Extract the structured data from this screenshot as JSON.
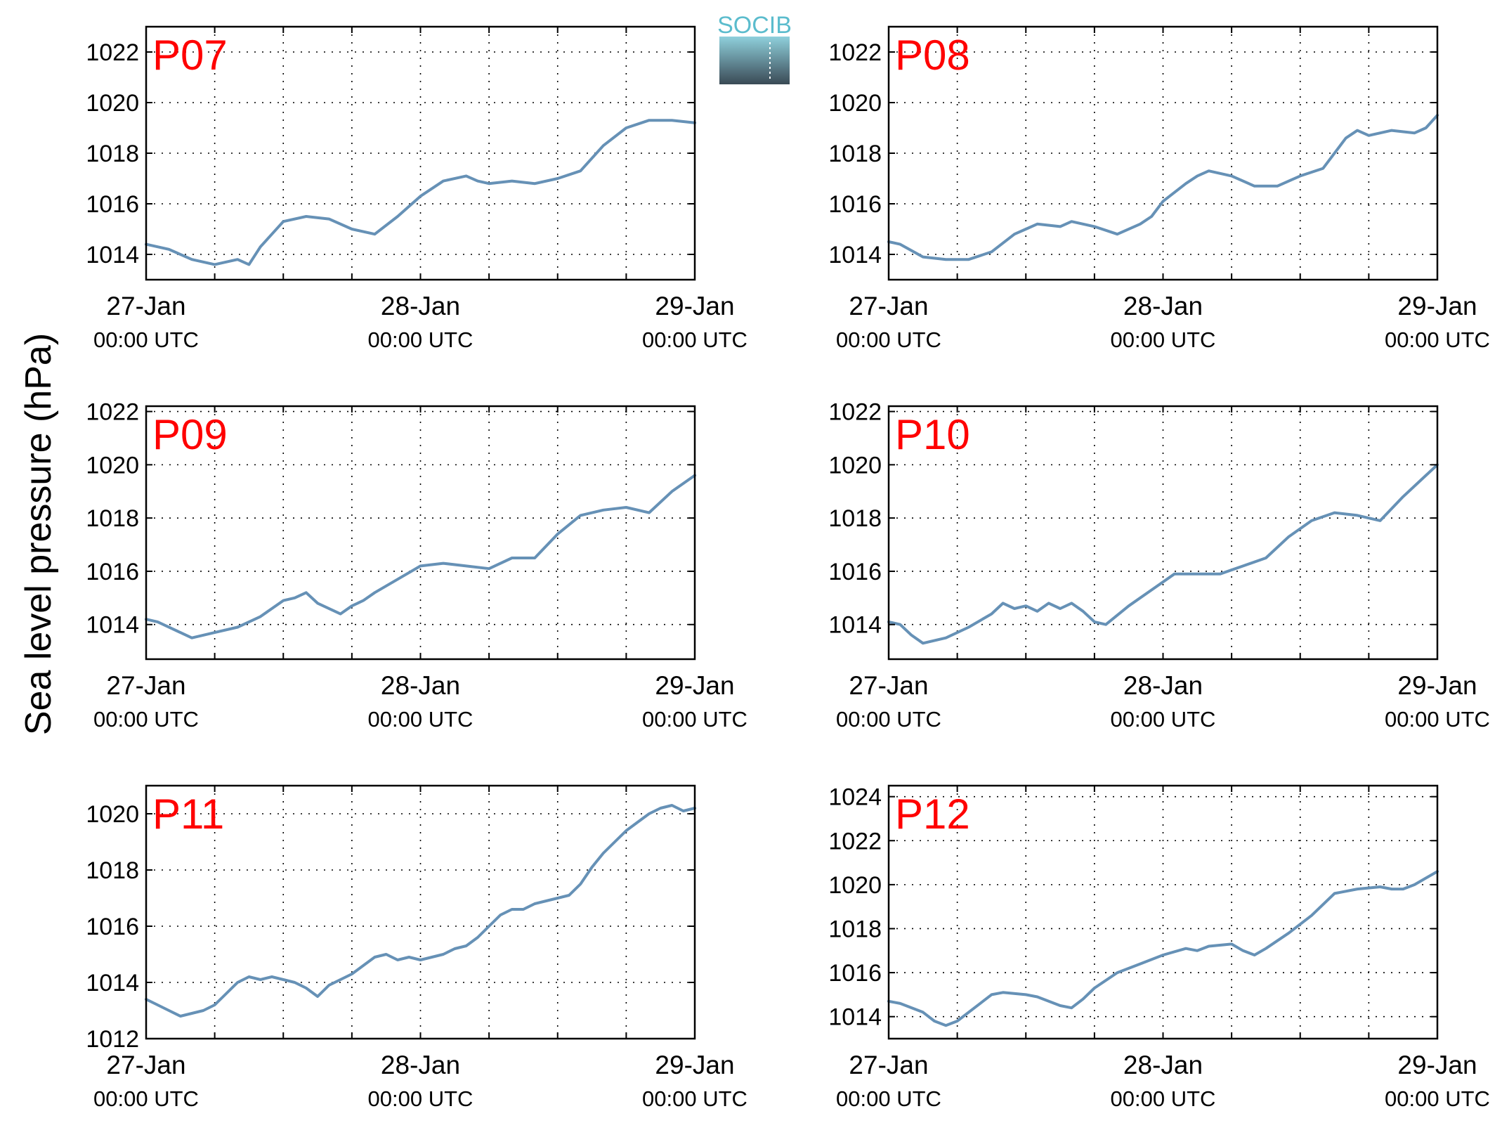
{
  "figure": {
    "ylabel": "Sea level pressure (hPa)",
    "logo_text": "SOCIB",
    "panel_label_color": "#ff0000",
    "line_color": "#6691b6",
    "logo_colors": {
      "text": "#5bbccd",
      "top": "#8fd0dc",
      "bottom": "#3a4a55"
    }
  },
  "chart_data": [
    {
      "type": "line",
      "title": "P07",
      "x_range": [
        "2019-01-27T00:00Z",
        "2019-01-29T00:00Z"
      ],
      "x_ticks": [
        {
          "date": "27-Jan",
          "time": "00:00 UTC"
        },
        {
          "date": "28-Jan",
          "time": "00:00 UTC"
        },
        {
          "date": "29-Jan",
          "time": "00:00 UTC"
        }
      ],
      "ylim": [
        1013,
        1023
      ],
      "yticks": [
        1014,
        1016,
        1018,
        1020,
        1022
      ],
      "grid": true,
      "series": [
        {
          "x_hours": [
            0,
            2,
            4,
            6,
            8,
            9,
            10,
            12,
            14,
            16,
            18,
            20,
            22,
            24,
            26,
            28,
            29,
            30,
            32,
            34,
            36,
            38,
            40,
            42,
            44,
            46,
            48
          ],
          "values": [
            1014.4,
            1014.2,
            1013.8,
            1013.6,
            1013.8,
            1013.6,
            1014.3,
            1015.3,
            1015.5,
            1015.4,
            1015.0,
            1014.8,
            1015.5,
            1016.3,
            1016.9,
            1017.1,
            1016.9,
            1016.8,
            1016.9,
            1016.8,
            1017.0,
            1017.3,
            1018.3,
            1019.0,
            1019.3,
            1019.3,
            1019.2
          ]
        }
      ]
    },
    {
      "type": "line",
      "title": "P08",
      "x_range": [
        "2019-01-27T00:00Z",
        "2019-01-29T00:00Z"
      ],
      "x_ticks": [
        {
          "date": "27-Jan",
          "time": "00:00 UTC"
        },
        {
          "date": "28-Jan",
          "time": "00:00 UTC"
        },
        {
          "date": "29-Jan",
          "time": "00:00 UTC"
        }
      ],
      "ylim": [
        1013,
        1023
      ],
      "yticks": [
        1014,
        1016,
        1018,
        1020,
        1022
      ],
      "grid": true,
      "series": [
        {
          "x_hours": [
            0,
            1,
            3,
            5,
            7,
            9,
            11,
            12,
            13,
            15,
            16,
            18,
            20,
            22,
            23,
            24,
            26,
            27,
            28,
            30,
            32,
            34,
            36,
            38,
            40,
            41,
            42,
            44,
            46,
            47,
            48
          ],
          "values": [
            1014.5,
            1014.4,
            1013.9,
            1013.8,
            1013.8,
            1014.1,
            1014.8,
            1015.0,
            1015.2,
            1015.1,
            1015.3,
            1015.1,
            1014.8,
            1015.2,
            1015.5,
            1016.1,
            1016.8,
            1017.1,
            1017.3,
            1017.1,
            1016.7,
            1016.7,
            1017.1,
            1017.4,
            1018.6,
            1018.9,
            1018.7,
            1018.9,
            1018.8,
            1019.0,
            1019.5
          ]
        }
      ]
    },
    {
      "type": "line",
      "title": "P09",
      "x_range": [
        "2019-01-27T00:00Z",
        "2019-01-29T00:00Z"
      ],
      "x_ticks": [
        {
          "date": "27-Jan",
          "time": "00:00 UTC"
        },
        {
          "date": "28-Jan",
          "time": "00:00 UTC"
        },
        {
          "date": "29-Jan",
          "time": "00:00 UTC"
        }
      ],
      "ylim": [
        1012.7,
        1022.2
      ],
      "yticks": [
        1014,
        1016,
        1018,
        1020,
        1022
      ],
      "grid": true,
      "series": [
        {
          "x_hours": [
            0,
            1,
            3,
            4,
            6,
            8,
            10,
            12,
            13,
            14,
            15,
            17,
            18,
            19,
            20,
            22,
            24,
            26,
            28,
            30,
            32,
            34,
            36,
            38,
            40,
            42,
            44,
            46,
            48
          ],
          "values": [
            1014.2,
            1014.1,
            1013.7,
            1013.5,
            1013.7,
            1013.9,
            1014.3,
            1014.9,
            1015.0,
            1015.2,
            1014.8,
            1014.4,
            1014.7,
            1014.9,
            1015.2,
            1015.7,
            1016.2,
            1016.3,
            1016.2,
            1016.1,
            1016.5,
            1016.5,
            1017.4,
            1018.1,
            1018.3,
            1018.4,
            1018.2,
            1019.0,
            1019.6
          ]
        }
      ]
    },
    {
      "type": "line",
      "title": "P10",
      "x_range": [
        "2019-01-27T00:00Z",
        "2019-01-29T00:00Z"
      ],
      "x_ticks": [
        {
          "date": "27-Jan",
          "time": "00:00 UTC"
        },
        {
          "date": "28-Jan",
          "time": "00:00 UTC"
        },
        {
          "date": "29-Jan",
          "time": "00:00 UTC"
        }
      ],
      "ylim": [
        1012.7,
        1022.2
      ],
      "yticks": [
        1014,
        1016,
        1018,
        1020,
        1022
      ],
      "grid": true,
      "series": [
        {
          "x_hours": [
            0,
            1,
            2,
            3,
            5,
            7,
            9,
            10,
            11,
            12,
            13,
            14,
            15,
            16,
            17,
            18,
            19,
            21,
            23,
            24,
            25,
            27,
            29,
            31,
            33,
            35,
            37,
            39,
            41,
            43,
            45,
            47,
            48
          ],
          "values": [
            1014.1,
            1014.0,
            1013.6,
            1013.3,
            1013.5,
            1013.9,
            1014.4,
            1014.8,
            1014.6,
            1014.7,
            1014.5,
            1014.8,
            1014.6,
            1014.8,
            1014.5,
            1014.1,
            1014.0,
            1014.7,
            1015.3,
            1015.6,
            1015.9,
            1015.9,
            1015.9,
            1016.2,
            1016.5,
            1017.3,
            1017.9,
            1018.2,
            1018.1,
            1017.9,
            1018.8,
            1019.6,
            1020.0
          ]
        }
      ]
    },
    {
      "type": "line",
      "title": "P11",
      "x_range": [
        "2019-01-27T00:00Z",
        "2019-01-29T00:00Z"
      ],
      "x_ticks": [
        {
          "date": "27-Jan",
          "time": "00:00 UTC"
        },
        {
          "date": "28-Jan",
          "time": "00:00 UTC"
        },
        {
          "date": "29-Jan",
          "time": "00:00 UTC"
        }
      ],
      "ylim": [
        1012,
        1021
      ],
      "yticks": [
        1012,
        1014,
        1016,
        1018,
        1020
      ],
      "grid": true,
      "series": [
        {
          "x_hours": [
            0,
            1,
            2,
            3,
            4,
            5,
            6,
            7,
            8,
            9,
            10,
            11,
            12,
            13,
            14,
            15,
            16,
            17,
            18,
            19,
            20,
            21,
            22,
            23,
            24,
            25,
            26,
            27,
            28,
            29,
            30,
            31,
            32,
            33,
            34,
            35,
            36,
            37,
            38,
            39,
            40,
            41,
            42,
            43,
            44,
            45,
            46,
            47,
            48
          ],
          "values": [
            1013.4,
            1013.2,
            1013.0,
            1012.8,
            1012.9,
            1013.0,
            1013.2,
            1013.6,
            1014.0,
            1014.2,
            1014.1,
            1014.2,
            1014.1,
            1014.0,
            1013.8,
            1013.5,
            1013.9,
            1014.1,
            1014.3,
            1014.6,
            1014.9,
            1015.0,
            1014.8,
            1014.9,
            1014.8,
            1014.9,
            1015.0,
            1015.2,
            1015.3,
            1015.6,
            1016.0,
            1016.4,
            1016.6,
            1016.6,
            1016.8,
            1016.9,
            1017.0,
            1017.1,
            1017.5,
            1018.1,
            1018.6,
            1019.0,
            1019.4,
            1019.7,
            1020.0,
            1020.2,
            1020.3,
            1020.1,
            1020.2
          ]
        }
      ]
    },
    {
      "type": "line",
      "title": "P12",
      "x_range": [
        "2019-01-27T00:00Z",
        "2019-01-29T00:00Z"
      ],
      "x_ticks": [
        {
          "date": "27-Jan",
          "time": "00:00 UTC"
        },
        {
          "date": "28-Jan",
          "time": "00:00 UTC"
        },
        {
          "date": "29-Jan",
          "time": "00:00 UTC"
        }
      ],
      "ylim": [
        1013,
        1024.5
      ],
      "yticks": [
        1014,
        1016,
        1018,
        1020,
        1022,
        1024
      ],
      "grid": true,
      "series": [
        {
          "x_hours": [
            0,
            1,
            3,
            4,
            5,
            6,
            7,
            8,
            9,
            10,
            12,
            13,
            15,
            16,
            17,
            18,
            20,
            22,
            24,
            26,
            27,
            28,
            30,
            31,
            32,
            33,
            35,
            37,
            39,
            41,
            43,
            44,
            45,
            46,
            48
          ],
          "values": [
            1014.7,
            1014.6,
            1014.2,
            1013.8,
            1013.6,
            1013.8,
            1014.2,
            1014.6,
            1015.0,
            1015.1,
            1015.0,
            1014.9,
            1014.5,
            1014.4,
            1014.8,
            1015.3,
            1016.0,
            1016.4,
            1016.8,
            1017.1,
            1017.0,
            1017.2,
            1017.3,
            1017.0,
            1016.8,
            1017.1,
            1017.8,
            1018.6,
            1019.6,
            1019.8,
            1019.9,
            1019.8,
            1019.8,
            1020.0,
            1020.6
          ]
        }
      ]
    }
  ]
}
